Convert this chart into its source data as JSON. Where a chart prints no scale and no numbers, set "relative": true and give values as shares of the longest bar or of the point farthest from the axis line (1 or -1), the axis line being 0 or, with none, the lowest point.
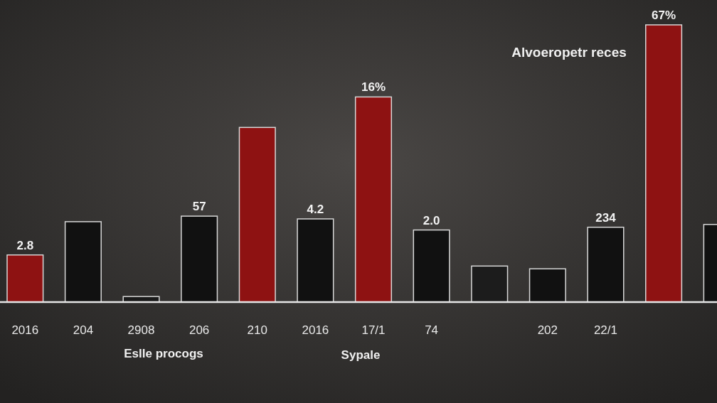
{
  "chart_data": {
    "type": "bar",
    "relative": true,
    "categories": [
      "2016",
      "204",
      "2908",
      "206",
      "210",
      "2016",
      "17/1",
      "74",
      null,
      "202",
      "22/1",
      null,
      null
    ],
    "values": [
      0.17,
      0.29,
      0.02,
      0.31,
      0.63,
      0.3,
      0.74,
      0.26,
      0.13,
      0.12,
      0.27,
      1.0,
      0.28
    ],
    "colors": [
      "#8e1212",
      "#111111",
      "#1a1a1a",
      "#111111",
      "#8e1212",
      "#111111",
      "#8e1212",
      "#111111",
      "#1c1c1c",
      "#111111",
      "#111111",
      "#8e1212",
      "#111111"
    ],
    "annotations": [
      "Alvoeropetr reces",
      "Eslle procogs",
      "Sypale",
      {
        "text": "2.8",
        "x": "2016",
        "y": 0.17
      },
      {
        "text": "57",
        "x": "206",
        "y": 0.31
      },
      {
        "text": "4.2",
        "y": 0.3
      },
      {
        "text": "16%",
        "x": "17/1",
        "y": 0.74
      },
      {
        "text": "2.0",
        "x": "74",
        "y": 0.26
      },
      {
        "text": "234",
        "x": "22/1",
        "y": 0.27
      },
      {
        "text": "67%",
        "y": 1.0
      }
    ],
    "grid": false,
    "legend": false
  }
}
